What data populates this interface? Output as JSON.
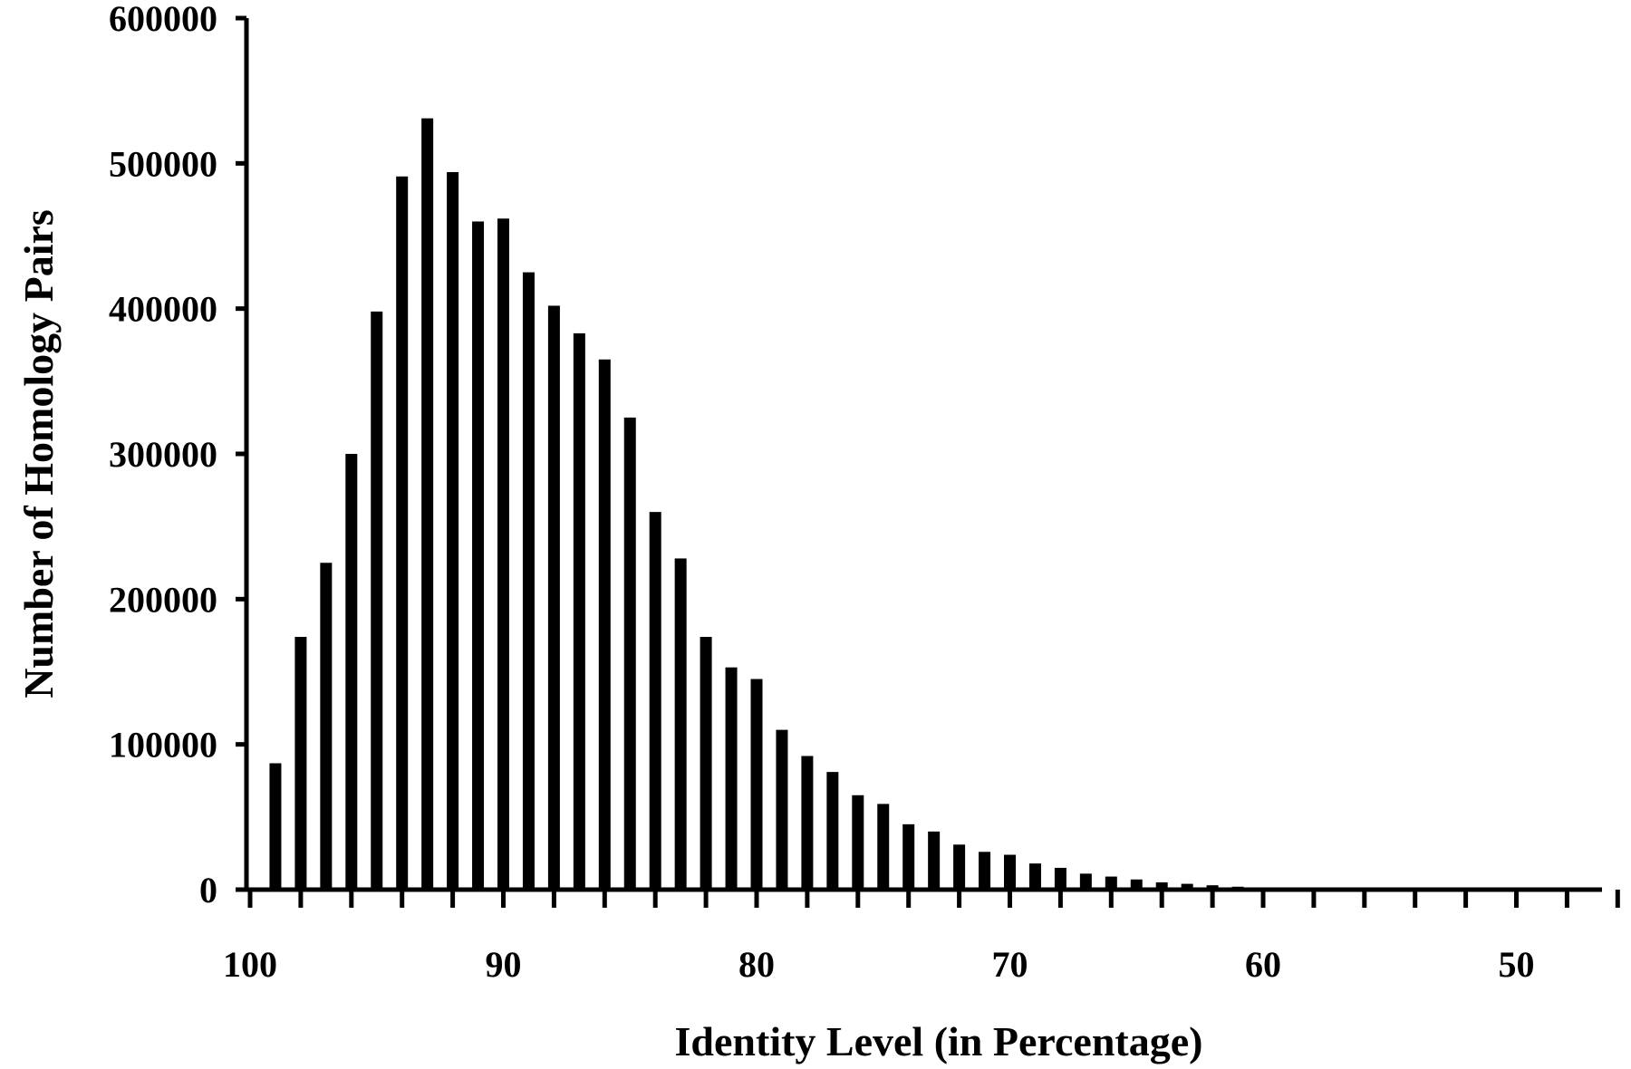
{
  "chart_data": {
    "type": "bar",
    "title": "",
    "xlabel": "Identity Level (in Percentage)",
    "ylabel": "Number of Homology Pairs",
    "x_reversed": true,
    "xlim": [
      100,
      46
    ],
    "ylim": [
      0,
      600000
    ],
    "yticks": [
      0,
      100000,
      200000,
      300000,
      400000,
      500000,
      600000
    ],
    "ytick_labels": [
      "0",
      "100000",
      "200000",
      "300000",
      "400000",
      "500000",
      "600000"
    ],
    "xticks": [
      100,
      90,
      80,
      70,
      60,
      50
    ],
    "xtick_labels": [
      "100",
      "90",
      "80",
      "70",
      "60",
      "50"
    ],
    "grid": false,
    "bar_color": "#000000",
    "categories": [
      99,
      98,
      97,
      96,
      95,
      94,
      93,
      92,
      91,
      90,
      89,
      88,
      87,
      86,
      85,
      84,
      83,
      82,
      81,
      80,
      79,
      78,
      77,
      76,
      75,
      74,
      73,
      72,
      71,
      70,
      69,
      68,
      67,
      66,
      65,
      64,
      63,
      62,
      61,
      60
    ],
    "values": [
      87000,
      174000,
      225000,
      300000,
      398000,
      491000,
      531000,
      494000,
      460000,
      462000,
      425000,
      402000,
      383000,
      365000,
      325000,
      260000,
      228000,
      174000,
      153000,
      145000,
      110000,
      92000,
      81000,
      65000,
      59000,
      45000,
      40000,
      31000,
      26000,
      24000,
      18000,
      15000,
      11000,
      9000,
      7000,
      5000,
      4000,
      3000,
      2000,
      1000
    ]
  }
}
